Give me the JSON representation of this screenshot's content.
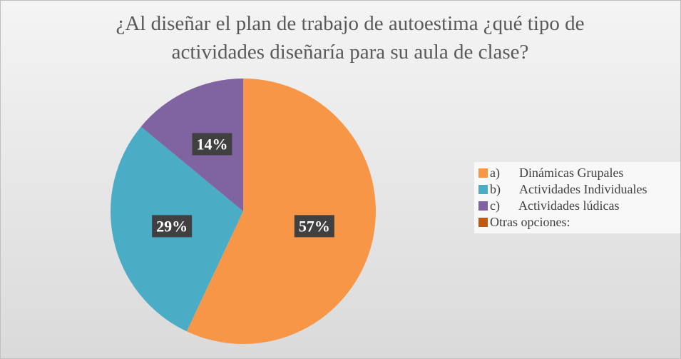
{
  "chart_data": {
    "type": "pie",
    "title": "¿Al diseñar el plan de trabajo de autoestima ¿qué tipo de actividades diseñaría para su aula de clase?",
    "categories": [
      "a)      Dinámicas Grupales",
      "b)      Actividades Individuales",
      "c)      Actividades lúdicas",
      "Otras opciones:"
    ],
    "values": [
      57,
      29,
      14,
      0
    ],
    "value_labels": [
      "57%",
      "29%",
      "14%",
      null
    ],
    "colors": [
      "#f79646",
      "#4bacc6",
      "#8064a2",
      "#c0590f"
    ],
    "legend": "right"
  }
}
